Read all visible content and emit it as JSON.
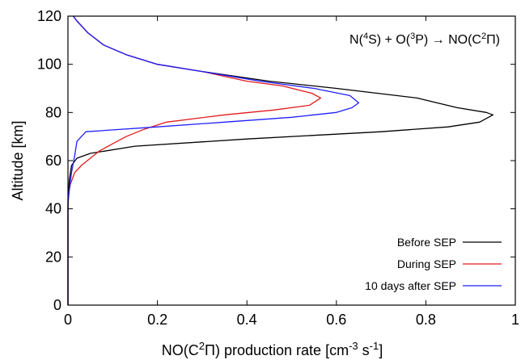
{
  "chart_data": {
    "type": "line",
    "title": "",
    "annotation_parts": {
      "p1": "N(",
      "p2": "4",
      "p3": "S) + O(",
      "p4": "3",
      "p5": "P) → NO(C",
      "p6": "2",
      "p7": "Π)"
    },
    "xlabel_parts": {
      "p1": "NO(C",
      "p2": "2",
      "p3": "Π) production rate [cm",
      "p4": "-3",
      "p5": " s",
      "p6": "-1",
      "p7": "]"
    },
    "ylabel": "Altitude [km]",
    "xlim": [
      0,
      1
    ],
    "ylim": [
      0,
      120
    ],
    "x_ticks": [
      0,
      0.2,
      0.4,
      0.6,
      0.8,
      1
    ],
    "x_tick_labels": [
      "0",
      "0.2",
      "0.4",
      "0.6",
      "0.8",
      "1"
    ],
    "y_ticks": [
      0,
      20,
      40,
      60,
      80,
      100,
      120
    ],
    "y_tick_labels": [
      "0",
      "20",
      "40",
      "60",
      "80",
      "100",
      "120"
    ],
    "grid": false,
    "legend_position": "bottom-right",
    "series": [
      {
        "name": "Before SEP",
        "color": "#000000",
        "points": [
          [
            0,
            0
          ],
          [
            0,
            40
          ],
          [
            0.001,
            46
          ],
          [
            0.003,
            52
          ],
          [
            0.008,
            58
          ],
          [
            0.02,
            61
          ],
          [
            0.05,
            63
          ],
          [
            0.15,
            66
          ],
          [
            0.4,
            69
          ],
          [
            0.7,
            72
          ],
          [
            0.85,
            74
          ],
          [
            0.92,
            76
          ],
          [
            0.95,
            79
          ],
          [
            0.935,
            80
          ],
          [
            0.87,
            82
          ],
          [
            0.78,
            86
          ],
          [
            0.6,
            90
          ],
          [
            0.45,
            93
          ],
          [
            0.3,
            97
          ],
          [
            0.2,
            100
          ],
          [
            0.13,
            104
          ],
          [
            0.08,
            108
          ],
          [
            0.045,
            113
          ],
          [
            0.02,
            118
          ],
          [
            0.012,
            120
          ]
        ]
      },
      {
        "name": "During SEP",
        "color": "#e31a1c",
        "points": [
          [
            0,
            0
          ],
          [
            0,
            44
          ],
          [
            0.005,
            50
          ],
          [
            0.015,
            55
          ],
          [
            0.03,
            58
          ],
          [
            0.05,
            61
          ],
          [
            0.07,
            64
          ],
          [
            0.1,
            67
          ],
          [
            0.13,
            70
          ],
          [
            0.17,
            73
          ],
          [
            0.22,
            76
          ],
          [
            0.35,
            79
          ],
          [
            0.46,
            81
          ],
          [
            0.54,
            83
          ],
          [
            0.565,
            86
          ],
          [
            0.545,
            88
          ],
          [
            0.48,
            91
          ],
          [
            0.4,
            93
          ],
          [
            0.3,
            97
          ],
          [
            0.2,
            100
          ],
          [
            0.13,
            104
          ],
          [
            0.08,
            108
          ],
          [
            0.045,
            113
          ],
          [
            0.02,
            118
          ],
          [
            0.012,
            120
          ]
        ]
      },
      {
        "name": "10 days after SEP",
        "color": "#1f1fff",
        "points": [
          [
            0,
            0
          ],
          [
            0,
            42
          ],
          [
            0.003,
            48
          ],
          [
            0.008,
            55
          ],
          [
            0.015,
            62
          ],
          [
            0.02,
            68
          ],
          [
            0.03,
            70
          ],
          [
            0.04,
            72
          ],
          [
            0.2,
            74
          ],
          [
            0.35,
            76
          ],
          [
            0.5,
            78
          ],
          [
            0.6,
            80
          ],
          [
            0.635,
            82
          ],
          [
            0.65,
            84
          ],
          [
            0.63,
            87
          ],
          [
            0.55,
            90
          ],
          [
            0.43,
            93
          ],
          [
            0.3,
            97
          ],
          [
            0.2,
            100
          ],
          [
            0.13,
            104
          ],
          [
            0.08,
            108
          ],
          [
            0.045,
            113
          ],
          [
            0.02,
            118
          ],
          [
            0.012,
            120
          ]
        ]
      }
    ]
  }
}
